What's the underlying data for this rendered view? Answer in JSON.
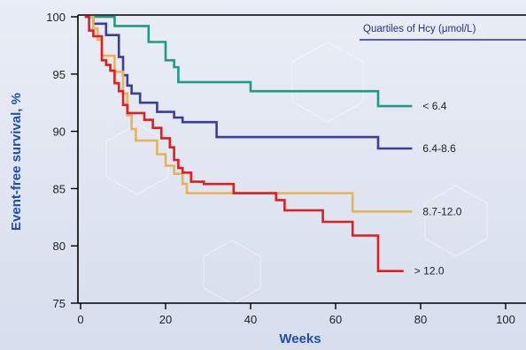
{
  "chart_data": {
    "type": "line",
    "title": "",
    "xlabel": "Weeks",
    "ylabel": "Event-free survival, %",
    "xlim": [
      0,
      100
    ],
    "ylim": [
      75,
      100
    ],
    "xticks": [
      0,
      20,
      40,
      60,
      80,
      100
    ],
    "yticks": [
      75,
      80,
      85,
      90,
      95,
      100
    ],
    "grid": false,
    "legend": {
      "title": "Quartiles of Hcy (μmol/L)",
      "placement": "top-right"
    },
    "series": [
      {
        "name": "< 6.4",
        "color": "#1e9a86",
        "x": [
          1,
          7,
          8,
          12,
          16,
          18,
          20,
          21,
          22,
          23,
          40,
          64,
          70,
          78
        ],
        "y": [
          100,
          100,
          99.2,
          99.2,
          97.8,
          97.8,
          96.2,
          96.2,
          95.6,
          94.3,
          93.5,
          93.5,
          92.2,
          92.2
        ]
      },
      {
        "name": "6.4-8.6",
        "color": "#3a3d9c",
        "x": [
          1,
          3,
          5,
          6,
          8,
          9,
          10,
          11,
          12,
          14,
          16,
          18,
          20,
          22,
          24,
          32,
          66,
          70,
          78
        ],
        "y": [
          100,
          99.4,
          99.4,
          98.4,
          98.4,
          96.5,
          94.9,
          94.0,
          93.3,
          92.5,
          92.5,
          91.7,
          91.7,
          91.2,
          90.8,
          89.5,
          89.5,
          88.5,
          88.5
        ]
      },
      {
        "name": "8.7-12.0",
        "color": "#e8b258",
        "x": [
          1,
          3,
          4,
          5,
          7,
          8,
          9,
          10,
          11,
          12,
          13,
          16,
          18,
          19,
          20,
          22,
          24,
          25,
          64,
          78
        ],
        "y": [
          100,
          99.0,
          98.0,
          96.6,
          96.6,
          95.2,
          95.2,
          93.3,
          91.4,
          90.2,
          89.2,
          89.2,
          88.0,
          88.0,
          87.0,
          86.3,
          85.4,
          84.6,
          83.0,
          83.0
        ]
      },
      {
        "name": "> 12.0",
        "color": "#e11d1d",
        "x": [
          1,
          2,
          3,
          4,
          5,
          6,
          7,
          8,
          9,
          10,
          11,
          13,
          15,
          17,
          19,
          21,
          22,
          23,
          24,
          26,
          29,
          36,
          46,
          48,
          57,
          64,
          68,
          70,
          76
        ],
        "y": [
          100,
          98.8,
          98.3,
          98.3,
          96.2,
          95.8,
          95.3,
          94.2,
          93.5,
          92.3,
          91.6,
          91.6,
          91.0,
          90.3,
          89.4,
          88.6,
          87.5,
          86.8,
          86.4,
          85.6,
          85.4,
          84.6,
          84.0,
          83.1,
          82.1,
          80.9,
          80.9,
          77.8,
          77.8
        ]
      }
    ]
  }
}
